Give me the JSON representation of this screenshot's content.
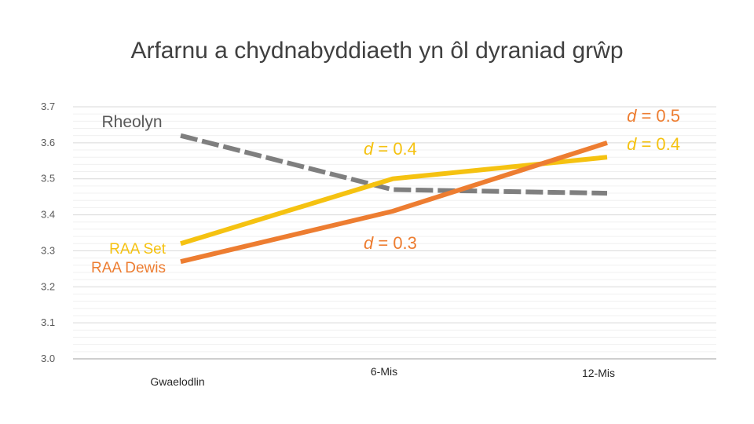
{
  "chart_data": {
    "type": "line",
    "title": "Arfarnu a chydnabyddiaeth yn ôl dyraniad grŵp",
    "categories": [
      "Gwaelodlin",
      "6-Mis",
      "12-Mis"
    ],
    "ylim": [
      3.0,
      3.7
    ],
    "yticks": [
      "3.0",
      "3.1",
      "3.2",
      "3.3",
      "3.4",
      "3.5",
      "3.6",
      "3.7"
    ],
    "grid": true,
    "series": [
      {
        "name": "Rheolyn",
        "values": [
          3.62,
          3.47,
          3.46
        ],
        "color": "#7f7f7f",
        "dashed": true
      },
      {
        "name": "RAA Set",
        "values": [
          3.32,
          3.5,
          3.56
        ],
        "color": "#f5c211",
        "dashed": false
      },
      {
        "name": "RAA Dewis",
        "values": [
          3.27,
          3.41,
          3.6
        ],
        "color": "#ed7d31",
        "dashed": false
      }
    ],
    "annotations": {
      "d_6mis_set": "d = 0.4",
      "d_6mis_dewis": "d = 0.3",
      "d_12mis_dewis": "d = 0.5",
      "d_12mis_set": "d = 0.4"
    }
  }
}
